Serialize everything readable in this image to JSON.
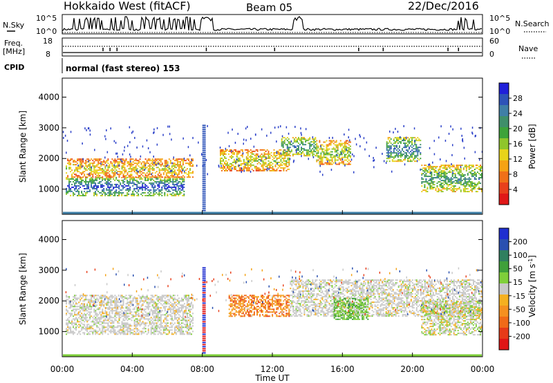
{
  "header": {
    "radar": "Hokkaido West (fitACF)",
    "beam": "Beam 05",
    "date": "22/Dec/2016"
  },
  "top_labels": {
    "nsky": "N.Sky",
    "nsky_top": "10^5",
    "nsky_bottom": "10^0",
    "nsearch": "N.Search",
    "nsearch_top": "10^5",
    "nsearch_bottom": "10^0",
    "freq_line1": "Freq.",
    "freq_line2": "[MHz]",
    "freq_top": "18",
    "freq_bottom": "8",
    "nave": "Nave",
    "nave_top": "60",
    "nave_bottom": "0",
    "cpid": "CPID",
    "cpid_text": "normal (fast stereo) 153"
  },
  "chart_data": [
    {
      "type": "heatmap",
      "name": "power",
      "ylabel": "Slant Range [km]",
      "ylim": [
        180,
        4620
      ],
      "yticks": [
        1000,
        2000,
        3000,
        4000
      ],
      "colorbar_label": "Power [dB]",
      "colorbar_ticks": [
        4,
        8,
        12,
        16,
        20,
        24,
        28
      ],
      "colorbar_colors": [
        "#1f1fd9",
        "#2d53b8",
        "#3f7fa6",
        "#3f8f6a",
        "#3da33a",
        "#8fc52b",
        "#e8d31a",
        "#f5a214",
        "#f07018",
        "#e8401c",
        "#e01818"
      ],
      "bands": [
        {
          "t": [
            0.2,
            7.0
          ],
          "r": [
            800,
            1400
          ],
          "level": 0.85
        },
        {
          "t": [
            0.2,
            7.5
          ],
          "r": [
            1400,
            2000
          ],
          "level": 0.4
        },
        {
          "t": [
            9.0,
            13.0
          ],
          "r": [
            1600,
            2300
          ],
          "level": 0.45
        },
        {
          "t": [
            12.5,
            14.5
          ],
          "r": [
            2100,
            2700
          ],
          "level": 0.7
        },
        {
          "t": [
            14.5,
            16.5
          ],
          "r": [
            1800,
            2600
          ],
          "level": 0.5
        },
        {
          "t": [
            18.5,
            20.5
          ],
          "r": [
            1900,
            2700
          ],
          "level": 0.75
        },
        {
          "t": [
            20.5,
            24.0
          ],
          "r": [
            900,
            1800
          ],
          "level": 0.65
        }
      ]
    },
    {
      "type": "heatmap",
      "name": "velocity",
      "xlabel": "Time UT",
      "ylabel": "Slant Range [km]",
      "ylim": [
        180,
        4620
      ],
      "yticks": [
        1000,
        2000,
        3000,
        4000
      ],
      "xticks": [
        "00:00",
        "04:00",
        "08:00",
        "12:00",
        "16:00",
        "20:00",
        "00:00"
      ],
      "colorbar_label": "Velocity [m s",
      "colorbar_unit_sup": "-1",
      "colorbar_unit_close": "]",
      "colorbar_ticks": [
        "200",
        "100",
        "50",
        "15",
        "-15",
        "-50",
        "-100",
        "-200"
      ],
      "colorbar_colors": [
        "#1f2fd0",
        "#2a50b0",
        "#2f7f5f",
        "#3fa03a",
        "#7fcf3a",
        "#c8c8c8",
        "#f5b020",
        "#f59020",
        "#f06a18",
        "#e63a18",
        "#e01515"
      ],
      "bands": [
        {
          "t": [
            0.2,
            7.5
          ],
          "r": [
            900,
            2200
          ],
          "kind": "gray"
        },
        {
          "t": [
            9.5,
            13.0
          ],
          "r": [
            1500,
            2200
          ],
          "kind": "orange"
        },
        {
          "t": [
            13.0,
            24.0
          ],
          "r": [
            1500,
            2700
          ],
          "kind": "gray"
        },
        {
          "t": [
            15.5,
            17.5
          ],
          "r": [
            1400,
            2100
          ],
          "kind": "green"
        },
        {
          "t": [
            20.5,
            24.0
          ],
          "r": [
            900,
            2000
          ],
          "kind": "mixed"
        }
      ]
    }
  ]
}
